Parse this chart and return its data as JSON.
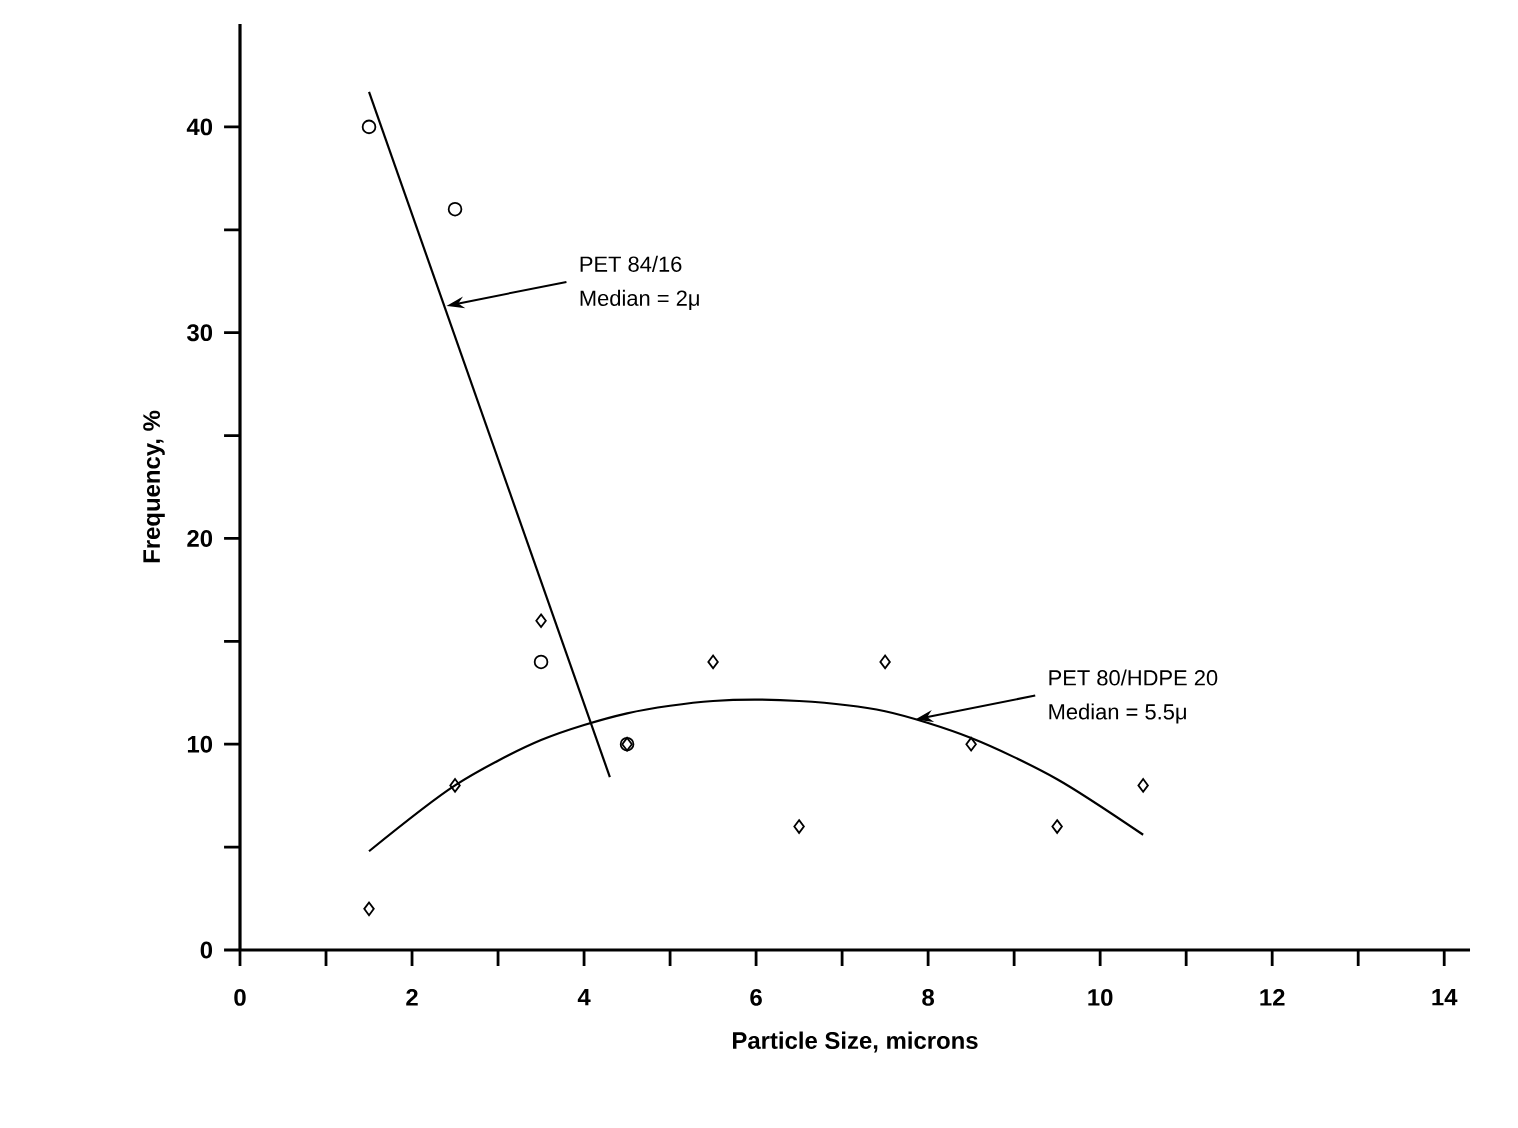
{
  "chart_data": {
    "type": "scatter",
    "xlabel": "Particle  Size,  microns",
    "ylabel": "Frequency,  %",
    "xlim": [
      0,
      14.3
    ],
    "ylim": [
      0,
      45
    ],
    "xticks": [
      0,
      {
        "value": 1,
        "label": null
      },
      2,
      {
        "value": 3,
        "label": null
      },
      4,
      {
        "value": 5,
        "label": null
      },
      6,
      {
        "value": 7,
        "label": null
      },
      8,
      {
        "value": 9,
        "label": null
      },
      10,
      {
        "value": 11,
        "label": null
      },
      12,
      {
        "value": 13,
        "label": null
      },
      14
    ],
    "yticks": [
      0,
      {
        "value": 5,
        "label": null
      },
      10,
      {
        "value": 15,
        "label": null
      },
      20,
      {
        "value": 25,
        "label": null
      },
      30,
      {
        "value": 35,
        "label": null
      },
      40
    ],
    "series": [
      {
        "marker": "circle",
        "color": "#000000",
        "x": [
          1.5,
          2.5,
          3.5,
          4.5
        ],
        "values": [
          40,
          36,
          14,
          10
        ]
      },
      {
        "marker": "diamond",
        "color": "#000000",
        "x": [
          1.5,
          2.5,
          3.5,
          4.5,
          5.5,
          6.5,
          7.5,
          8.5,
          9.5,
          10.5
        ],
        "values": [
          2,
          8,
          16,
          10,
          14,
          6,
          14,
          10,
          6,
          8
        ]
      },
      {
        "type": "line",
        "marker": "none",
        "line_style": "solid",
        "color": "#000000",
        "x": [
          1.5,
          4.3
        ],
        "values": [
          41.7,
          8.4
        ]
      },
      {
        "type": "line",
        "marker": "none",
        "line_style": "solid",
        "color": "#000000",
        "x": [
          1.5,
          2.5,
          3.5,
          4.5,
          5.5,
          6.5,
          7.5,
          8.5,
          9.5,
          10.5
        ],
        "values": [
          4.8,
          8,
          10.2,
          11.5,
          12.1,
          12.1,
          11.6,
          10.3,
          8.3,
          5.6
        ]
      }
    ],
    "annotations": [
      {
        "text": "PET 84/16",
        "x": 2.4,
        "y": 31.3
      },
      "Median = 2μ",
      {
        "text": "PET 80/HDPE 20",
        "x": 7.85,
        "y": 11.2
      },
      "Median = 5.5μ"
    ]
  }
}
